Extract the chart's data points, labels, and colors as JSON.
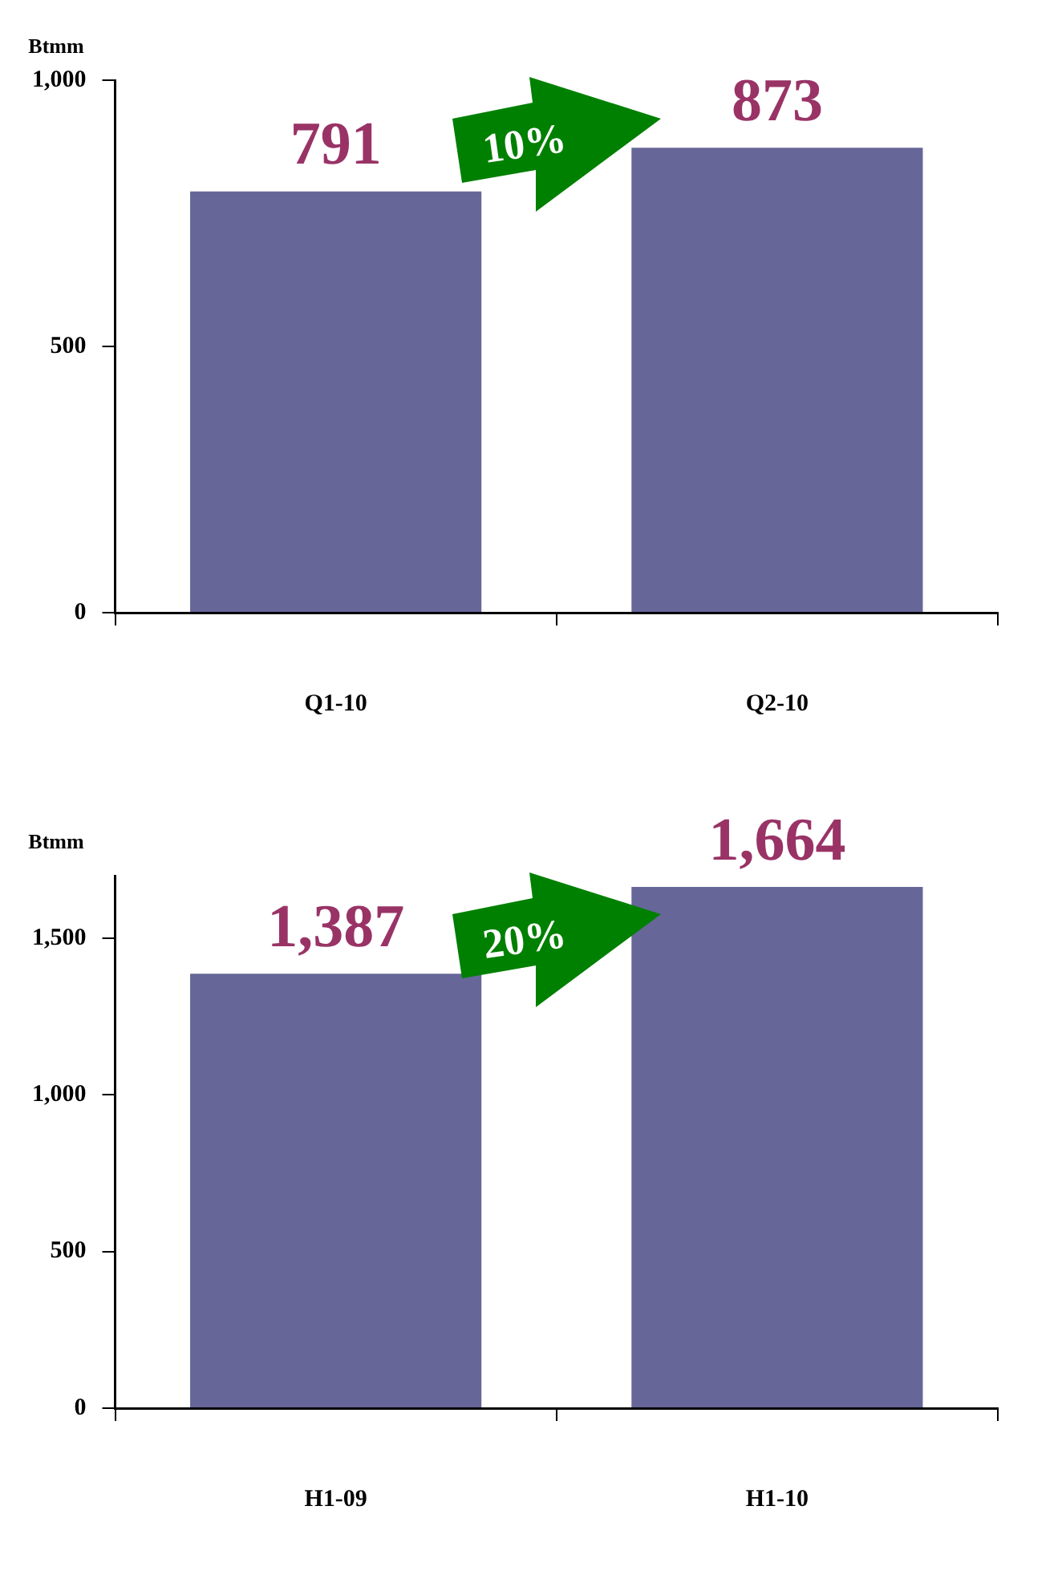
{
  "chart_data": [
    {
      "type": "bar",
      "ylabel": "Btmm",
      "categories": [
        "Q1-10",
        "Q2-10"
      ],
      "values": [
        791,
        873
      ],
      "value_labels": [
        "791",
        "873"
      ],
      "color": "#666699",
      "ylim": [
        0,
        1000
      ],
      "yticks": [
        0,
        {
          "value": 500,
          "label": "500"
        },
        {
          "value": 1000,
          "label": "1,000"
        }
      ],
      "grid": false,
      "legend": false,
      "annotations": [
        "10%"
      ]
    },
    {
      "type": "bar",
      "ylabel": "Btmm",
      "categories": [
        "H1-09",
        "H1-10"
      ],
      "values": [
        1387,
        1664
      ],
      "value_labels": [
        "1,387",
        "1,664"
      ],
      "color": "#666699",
      "ylim": [
        0,
        1700
      ],
      "yticks": [
        0,
        {
          "value": 500,
          "label": "500"
        },
        {
          "value": 1000,
          "label": "1,000"
        },
        {
          "value": 1500,
          "label": "1,500"
        }
      ],
      "grid": false,
      "legend": false,
      "annotations": [
        "20%"
      ]
    }
  ]
}
